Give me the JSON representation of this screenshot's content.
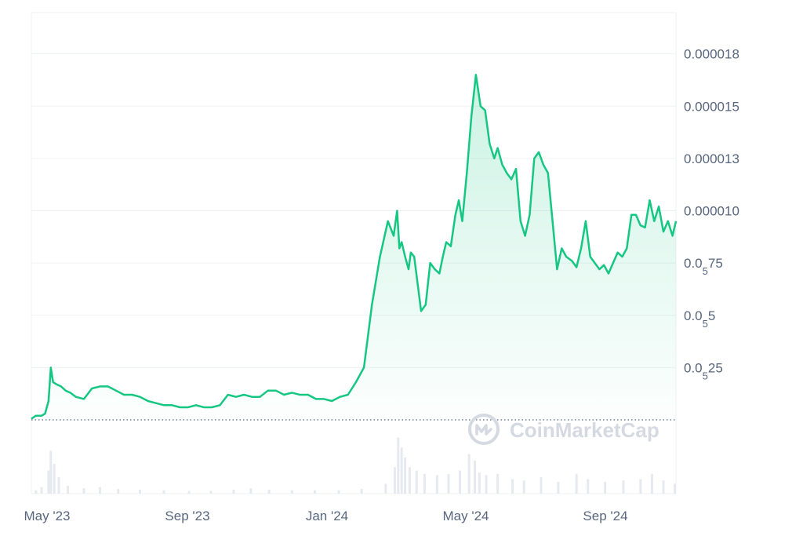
{
  "chart_data": {
    "type": "area",
    "title": "",
    "xlabel": "",
    "ylabel": "",
    "watermark": "CoinMarketCap",
    "x_ticks": [
      "May '23",
      "Sep '23",
      "Jan '24",
      "May '24",
      "Sep '24"
    ],
    "y_ticks": [
      {
        "value": 2.5e-06,
        "main": "0.0",
        "sub": "5",
        "rest": "25"
      },
      {
        "value": 5e-06,
        "main": "0.0",
        "sub": "5",
        "rest": "5"
      },
      {
        "value": 7.5e-06,
        "main": "0.0",
        "sub": "5",
        "rest": "75"
      },
      {
        "value": 1e-05,
        "main": "0.000010",
        "sub": "",
        "rest": ""
      },
      {
        "value": 1.25e-05,
        "main": "0.000013",
        "sub": "",
        "rest": ""
      },
      {
        "value": 1.5e-05,
        "main": "0.000015",
        "sub": "",
        "rest": ""
      },
      {
        "value": 1.75e-05,
        "main": "0.000018",
        "sub": "",
        "rest": ""
      }
    ],
    "ylim": [
      0,
      2e-05
    ],
    "x_range": [
      "2023-04-16",
      "2024-10-31"
    ],
    "colors": {
      "line": "#16c784",
      "fill": "#16c784",
      "volume": "#e6e9ef",
      "grid": "#eff2f5",
      "baseline": "#58667e"
    },
    "series": [
      {
        "x": [
          "2023-04-16",
          "2023-04-20",
          "2023-04-25",
          "2023-04-28",
          "2023-05-01",
          "2023-05-03",
          "2023-05-05",
          "2023-05-08",
          "2023-05-12",
          "2023-05-16",
          "2023-05-20",
          "2023-05-25",
          "2023-06-01",
          "2023-06-08",
          "2023-06-15",
          "2023-06-22",
          "2023-06-29",
          "2023-07-06",
          "2023-07-13",
          "2023-07-20",
          "2023-07-27",
          "2023-08-03",
          "2023-08-10",
          "2023-08-17",
          "2023-08-24",
          "2023-08-31",
          "2023-09-07",
          "2023-09-14",
          "2023-09-21",
          "2023-09-28",
          "2023-10-05",
          "2023-10-12",
          "2023-10-19",
          "2023-10-26",
          "2023-11-02",
          "2023-11-09",
          "2023-11-16",
          "2023-11-23",
          "2023-11-30",
          "2023-12-07",
          "2023-12-14",
          "2023-12-21",
          "2023-12-28",
          "2024-01-04",
          "2024-01-11",
          "2024-01-18",
          "2024-01-25",
          "2024-02-01",
          "2024-02-08",
          "2024-02-15",
          "2024-02-22",
          "2024-02-27",
          "2024-03-01",
          "2024-03-03",
          "2024-03-05",
          "2024-03-08",
          "2024-03-11",
          "2024-03-13",
          "2024-03-16",
          "2024-03-19",
          "2024-03-22",
          "2024-03-26",
          "2024-03-30",
          "2024-04-03",
          "2024-04-07",
          "2024-04-10",
          "2024-04-13",
          "2024-04-17",
          "2024-04-21",
          "2024-04-24",
          "2024-04-27",
          "2024-05-01",
          "2024-05-05",
          "2024-05-09",
          "2024-05-13",
          "2024-05-17",
          "2024-05-21",
          "2024-05-25",
          "2024-05-28",
          "2024-06-01",
          "2024-06-05",
          "2024-06-09",
          "2024-06-13",
          "2024-06-17",
          "2024-06-21",
          "2024-06-25",
          "2024-06-29",
          "2024-07-03",
          "2024-07-07",
          "2024-07-11",
          "2024-07-15",
          "2024-07-19",
          "2024-07-23",
          "2024-07-27",
          "2024-08-01",
          "2024-08-05",
          "2024-08-09",
          "2024-08-13",
          "2024-08-17",
          "2024-08-21",
          "2024-08-25",
          "2024-08-29",
          "2024-09-02",
          "2024-09-06",
          "2024-09-10",
          "2024-09-14",
          "2024-09-18",
          "2024-09-22",
          "2024-09-26",
          "2024-09-30",
          "2024-10-04",
          "2024-10-08",
          "2024-10-12",
          "2024-10-16",
          "2024-10-20",
          "2024-10-24",
          "2024-10-28",
          "2024-10-31"
        ],
        "values": [
          5e-08,
          2e-07,
          2e-07,
          3e-07,
          9e-07,
          2.5e-06,
          1.8e-06,
          1.7e-06,
          1.6e-06,
          1.4e-06,
          1.3e-06,
          1.1e-06,
          1e-06,
          1.5e-06,
          1.6e-06,
          1.6e-06,
          1.4e-06,
          1.2e-06,
          1.2e-06,
          1.1e-06,
          9e-07,
          8e-07,
          7e-07,
          7e-07,
          6e-07,
          6e-07,
          7e-07,
          6e-07,
          6e-07,
          7e-07,
          1.2e-06,
          1.1e-06,
          1.2e-06,
          1.1e-06,
          1.1e-06,
          1.4e-06,
          1.4e-06,
          1.2e-06,
          1.3e-06,
          1.2e-06,
          1.2e-06,
          1e-06,
          1e-06,
          9e-07,
          1.1e-06,
          1.2e-06,
          1.8e-06,
          2.5e-06,
          5.5e-06,
          7.8e-06,
          9.5e-06,
          8.8e-06,
          1e-05,
          8.2e-06,
          8.5e-06,
          7.8e-06,
          7.2e-06,
          8e-06,
          7.8e-06,
          6.5e-06,
          5.2e-06,
          5.5e-06,
          7.5e-06,
          7.2e-06,
          7e-06,
          7.8e-06,
          8.5e-06,
          8.3e-06,
          9.8e-06,
          1.05e-05,
          9.5e-06,
          1.18e-05,
          1.45e-05,
          1.65e-05,
          1.5e-05,
          1.48e-05,
          1.32e-05,
          1.25e-05,
          1.3e-05,
          1.22e-05,
          1.18e-05,
          1.15e-05,
          1.2e-05,
          9.5e-06,
          8.8e-06,
          9.8e-06,
          1.25e-05,
          1.28e-05,
          1.22e-05,
          1.18e-05,
          9.5e-06,
          7.2e-06,
          8.2e-06,
          7.8e-06,
          7.6e-06,
          7.3e-06,
          8.2e-06,
          9.5e-06,
          7.8e-06,
          7.5e-06,
          7.2e-06,
          7.4e-06,
          7e-06,
          7.5e-06,
          8e-06,
          7.8e-06,
          8.2e-06,
          9.8e-06,
          9.8e-06,
          9.3e-06,
          9.2e-06,
          1.05e-05,
          9.5e-06,
          1.02e-05,
          9e-06,
          9.5e-06,
          8.8e-06,
          9.5e-06
        ]
      }
    ],
    "volume": {
      "x": [
        "2023-04-20",
        "2023-04-25",
        "2023-05-01",
        "2023-05-03",
        "2023-05-06",
        "2023-05-10",
        "2023-05-18",
        "2023-06-01",
        "2023-06-15",
        "2023-07-01",
        "2023-07-20",
        "2023-08-10",
        "2023-09-01",
        "2023-09-20",
        "2023-10-10",
        "2023-10-25",
        "2023-11-10",
        "2023-11-30",
        "2023-12-20",
        "2024-01-10",
        "2024-01-30",
        "2024-02-20",
        "2024-02-28",
        "2024-03-02",
        "2024-03-05",
        "2024-03-08",
        "2024-03-12",
        "2024-03-18",
        "2024-03-25",
        "2024-04-05",
        "2024-04-15",
        "2024-04-25",
        "2024-05-03",
        "2024-05-08",
        "2024-05-12",
        "2024-05-18",
        "2024-05-28",
        "2024-06-10",
        "2024-06-20",
        "2024-07-05",
        "2024-07-20",
        "2024-08-05",
        "2024-08-15",
        "2024-08-30",
        "2024-09-15",
        "2024-09-30",
        "2024-10-10",
        "2024-10-20",
        "2024-10-30"
      ],
      "values": [
        0.05,
        0.1,
        0.35,
        0.65,
        0.45,
        0.25,
        0.12,
        0.08,
        0.1,
        0.07,
        0.06,
        0.05,
        0.04,
        0.04,
        0.06,
        0.08,
        0.06,
        0.05,
        0.05,
        0.05,
        0.07,
        0.15,
        0.4,
        0.85,
        0.7,
        0.55,
        0.4,
        0.35,
        0.3,
        0.28,
        0.3,
        0.35,
        0.6,
        0.5,
        0.32,
        0.28,
        0.3,
        0.22,
        0.2,
        0.25,
        0.18,
        0.3,
        0.22,
        0.18,
        0.2,
        0.22,
        0.3,
        0.2,
        0.15
      ]
    }
  }
}
